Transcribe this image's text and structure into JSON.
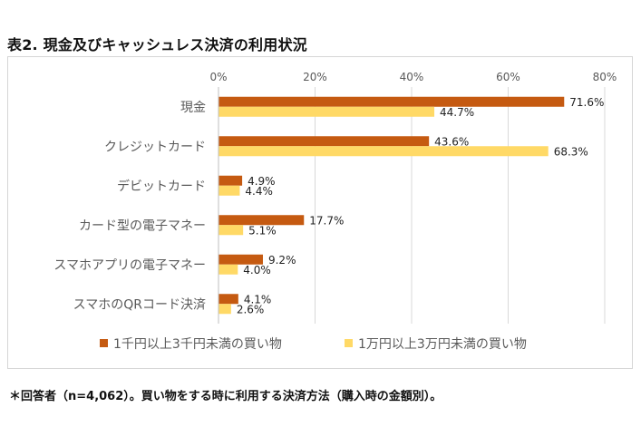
{
  "title": "表2. 現金及びキャッシュレス決済の利用状況",
  "footnote": "＊回答者（n=4,062）。買い物をする時に利用する決済方法（購入時の金額別）。",
  "colors": {
    "series1": "#c55a11",
    "series2": "#ffd966",
    "grid": "#d9d9d9",
    "text": "#595959"
  },
  "chart_data": {
    "type": "bar",
    "orientation": "horizontal",
    "categories": [
      "現金",
      "クレジットカード",
      "デビットカード",
      "カード型の電子マネー",
      "スマホアプリの電子マネー",
      "スマホのQRコード決済"
    ],
    "series": [
      {
        "name": "1千円以上3千円未満の買い物",
        "values": [
          71.6,
          43.6,
          4.9,
          17.7,
          9.2,
          4.1
        ],
        "labels": [
          "71.6%",
          "43.6%",
          "4.9%",
          "17.7%",
          "9.2%",
          "4.1%"
        ]
      },
      {
        "name": "1万円以上3万円未満の買い物",
        "values": [
          44.7,
          68.3,
          4.4,
          5.1,
          4.0,
          2.6
        ],
        "labels": [
          "44.7%",
          "68.3%",
          "4.4%",
          "5.1%",
          "4.0%",
          "2.6%"
        ]
      }
    ],
    "xlim": [
      0,
      80
    ],
    "xticks": [
      "0%",
      "20%",
      "40%",
      "60%",
      "80%"
    ],
    "grid": true,
    "legend_position": "bottom"
  }
}
